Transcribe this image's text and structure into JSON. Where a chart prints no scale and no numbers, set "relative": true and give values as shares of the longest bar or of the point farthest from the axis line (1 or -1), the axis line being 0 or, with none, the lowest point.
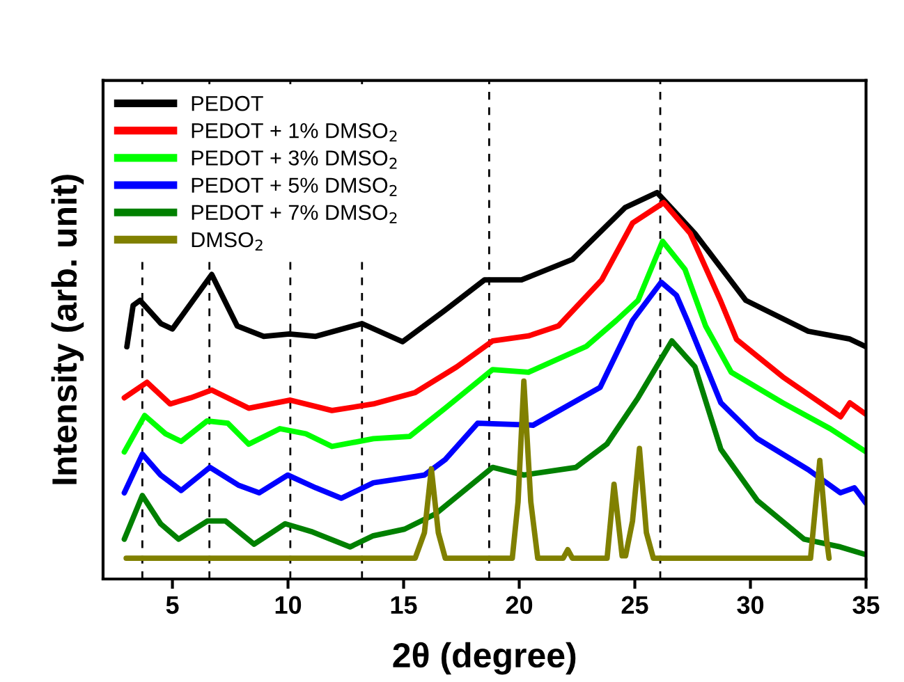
{
  "chart_data": {
    "type": "line",
    "xlabel": "2θ (degree)",
    "ylabel": "Intensity (arb. unit)",
    "relative": true,
    "xlim": [
      2,
      35
    ],
    "xticks": [
      5,
      10,
      15,
      20,
      25,
      30,
      35
    ],
    "grid": false,
    "legend": "top left",
    "marker": "none",
    "line_style": "solid",
    "ref_lines": [
      {
        "axis": "x",
        "value": 3.7,
        "color": "#000000",
        "line_style": "dashed"
      },
      {
        "axis": "x",
        "value": 6.6,
        "color": "#000000",
        "line_style": "dashed"
      },
      {
        "axis": "x",
        "value": 10.1,
        "color": "#000000",
        "line_style": "dashed"
      },
      {
        "axis": "x",
        "value": 13.2,
        "color": "#000000",
        "line_style": "dashed"
      },
      {
        "axis": "x",
        "value": 18.7,
        "color": "#000000",
        "line_style": "dashed"
      },
      {
        "axis": "x",
        "value": 26.1,
        "color": "#000000",
        "line_style": "dashed"
      }
    ],
    "series": [
      {
        "name": "PEDOT",
        "color": "#000000",
        "x": [
          3.03,
          3.3,
          3.6,
          4.5,
          5.0,
          6.7,
          7.8,
          8.95,
          10.06,
          11.2,
          13.2,
          14.95,
          16.76,
          18.5,
          20.1,
          22.3,
          24.58,
          25.96,
          27.6,
          29.8,
          32.5,
          34.3,
          35
        ],
        "values": [
          0.601,
          0.708,
          0.721,
          0.661,
          0.647,
          0.788,
          0.655,
          0.628,
          0.634,
          0.628,
          0.661,
          0.614,
          0.694,
          0.774,
          0.774,
          0.827,
          0.961,
          1.0,
          0.894,
          0.721,
          0.641,
          0.621,
          0.601
        ]
      },
      {
        "name": "PEDOT + 1% DMSO$_{2}$",
        "color": "#ff0000",
        "x": [
          2.92,
          3.9,
          4.9,
          5.8,
          6.7,
          8.3,
          10.1,
          11.9,
          13.69,
          15.48,
          17.3,
          18.85,
          20.4,
          21.7,
          23.57,
          24.9,
          26.25,
          27.4,
          28.7,
          29.4,
          31.4,
          33.9,
          34.3,
          35
        ],
        "values": [
          0.469,
          0.509,
          0.453,
          0.469,
          0.489,
          0.442,
          0.463,
          0.436,
          0.453,
          0.482,
          0.549,
          0.616,
          0.629,
          0.655,
          0.774,
          0.921,
          0.974,
          0.894,
          0.721,
          0.62,
          0.523,
          0.42,
          0.456,
          0.426
        ]
      },
      {
        "name": "PEDOT + 3% DMSO$_{2}$",
        "color": "#00ff00",
        "x": [
          2.92,
          3.8,
          4.7,
          5.38,
          6.5,
          7.4,
          8.3,
          9.65,
          10.77,
          11.9,
          13.69,
          15.26,
          16.8,
          18.85,
          20.4,
          22.9,
          24.2,
          25.14,
          26.2,
          27.17,
          28.06,
          29.17,
          31.4,
          33.45,
          35
        ],
        "values": [
          0.329,
          0.423,
          0.376,
          0.356,
          0.409,
          0.403,
          0.349,
          0.389,
          0.376,
          0.343,
          0.363,
          0.369,
          0.442,
          0.542,
          0.535,
          0.602,
          0.669,
          0.721,
          0.874,
          0.801,
          0.655,
          0.535,
          0.456,
          0.389,
          0.329
        ]
      },
      {
        "name": "PEDOT + 5% DMSO$_{2}$",
        "color": "#0000ff",
        "x": [
          2.92,
          3.7,
          4.49,
          5.38,
          6.62,
          7.85,
          8.75,
          9.99,
          11.2,
          12.3,
          13.69,
          15.9,
          16.8,
          18.2,
          20.6,
          23.5,
          24.9,
          26.14,
          26.8,
          27.27,
          28.72,
          30.3,
          32.5,
          33.89,
          34.5,
          35
        ],
        "values": [
          0.223,
          0.323,
          0.269,
          0.229,
          0.289,
          0.243,
          0.223,
          0.269,
          0.236,
          0.209,
          0.249,
          0.269,
          0.309,
          0.403,
          0.398,
          0.496,
          0.669,
          0.768,
          0.734,
          0.669,
          0.456,
          0.363,
          0.283,
          0.223,
          0.236,
          0.196
        ]
      },
      {
        "name": "PEDOT + 7% DMSO$_{2}$",
        "color": "#008000",
        "x": [
          2.92,
          3.7,
          4.49,
          5.27,
          6.51,
          7.3,
          8.53,
          9.88,
          11.0,
          12.68,
          13.69,
          15.04,
          16.39,
          18.85,
          20.2,
          22.45,
          23.79,
          25.14,
          26.6,
          27.6,
          28.72,
          30.3,
          32.32,
          33.89,
          35
        ],
        "values": [
          0.103,
          0.216,
          0.143,
          0.103,
          0.15,
          0.15,
          0.09,
          0.143,
          0.123,
          0.083,
          0.112,
          0.129,
          0.169,
          0.289,
          0.269,
          0.289,
          0.349,
          0.469,
          0.616,
          0.549,
          0.336,
          0.203,
          0.103,
          0.083,
          0.063
        ]
      },
      {
        "name": "DMSO$_{2}$",
        "color": "#808000",
        "x": [
          3.0,
          15.5,
          15.9,
          16.2,
          16.5,
          16.8,
          19.7,
          19.95,
          20.2,
          20.5,
          20.8,
          21.9,
          22.1,
          22.3,
          23.8,
          24.1,
          24.45,
          24.6,
          24.9,
          25.2,
          25.5,
          25.8,
          32.6,
          33.0,
          33.3,
          33.4
        ],
        "values": [
          0.054,
          0.054,
          0.12,
          0.285,
          0.12,
          0.054,
          0.054,
          0.2,
          0.512,
          0.2,
          0.054,
          0.054,
          0.076,
          0.054,
          0.054,
          0.245,
          0.06,
          0.06,
          0.15,
          0.338,
          0.12,
          0.054,
          0.054,
          0.307,
          0.1,
          0.054
        ]
      }
    ]
  }
}
